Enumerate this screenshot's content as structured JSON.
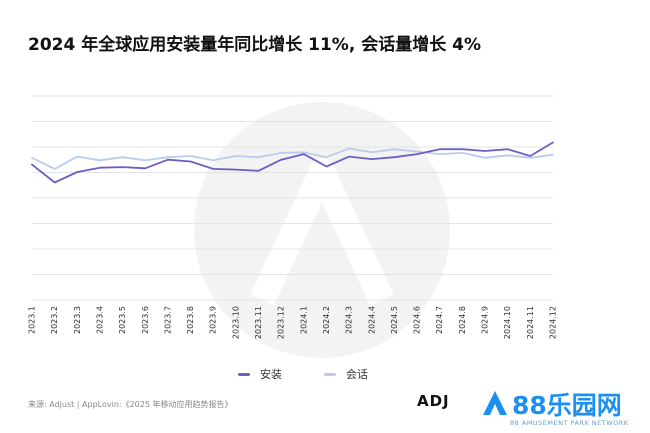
{
  "header": {
    "title": "2024 年全球应用安装量年同比增长 11%, 会话量增长 4%"
  },
  "chart_data": {
    "type": "line",
    "title": "2024 年全球应用安装量年同比增长 11%, 会话量增长 4%",
    "categories": [
      "2023.1",
      "2023.2",
      "2023.3",
      "2023.4",
      "2023.5",
      "2023.6",
      "2023.7",
      "2023.8",
      "2023.9",
      "2023.10",
      "2023.11",
      "2023.12",
      "2024.1",
      "2024.2",
      "2024.3",
      "2024.4",
      "2024.5",
      "2024.6",
      "2024.7",
      "2024.8",
      "2024.9",
      "2024.10",
      "2024.11",
      "2024.12"
    ],
    "series": [
      {
        "name": "安装",
        "color": "#6b5fc4",
        "values": [
          59,
          30,
          47,
          54,
          55,
          53,
          67,
          64,
          52,
          51,
          49,
          67,
          76,
          56,
          72,
          68,
          71,
          76,
          84,
          84,
          81,
          84,
          73,
          95
        ]
      },
      {
        "name": "会话",
        "color": "#b9cdea",
        "values": [
          70,
          52,
          72,
          66,
          71,
          66,
          71,
          73,
          66,
          73,
          71,
          78,
          79,
          71,
          85,
          79,
          84,
          80,
          76,
          78,
          70,
          74,
          70,
          75
        ]
      }
    ],
    "ylim": [
      -160,
      170
    ],
    "grid": true,
    "legend": "bottom-center"
  },
  "legend": {
    "items": [
      {
        "label": "安装",
        "color": "#6b5fc4"
      },
      {
        "label": "会话",
        "color": "#b9cdea"
      }
    ]
  },
  "footer": {
    "source": "来源: Adjust | AppLovin:《2025 年移动应用趋势报告》",
    "adj_logo": "ADJ",
    "brand_name": "88乐园网",
    "brand_sub": "88 AMUSEMENT PARK NETWORK"
  }
}
